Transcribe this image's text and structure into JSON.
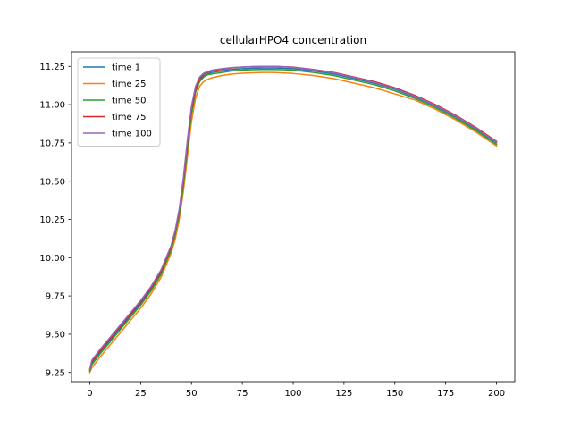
{
  "chart_data": {
    "type": "line",
    "title": "cellularHPO4 concentration",
    "xlabel": "",
    "ylabel": "",
    "xlim": [
      -9,
      209
    ],
    "ylim": [
      9.19,
      11.345
    ],
    "x_ticks": [
      0,
      25,
      50,
      75,
      100,
      125,
      150,
      175,
      200
    ],
    "y_ticks": [
      9.25,
      9.5,
      9.75,
      10.0,
      10.25,
      10.5,
      10.75,
      11.0,
      11.25
    ],
    "y_tick_labels": [
      "9.25",
      "9.50",
      "9.75",
      "10.00",
      "10.25",
      "10.50",
      "10.75",
      "11.00",
      "11.25"
    ],
    "grid": false,
    "legend_position": "upper left",
    "x": [
      0,
      1,
      5,
      10,
      15,
      20,
      25,
      30,
      35,
      40,
      42,
      44,
      46,
      48,
      50,
      52,
      54,
      56,
      58,
      60,
      65,
      70,
      75,
      80,
      85,
      90,
      95,
      100,
      110,
      120,
      130,
      140,
      150,
      160,
      170,
      180,
      190,
      200
    ],
    "series": [
      {
        "name": "time 1",
        "color": "#1f77b4",
        "values": [
          9.26,
          9.31,
          9.38,
          9.46,
          9.54,
          9.62,
          9.7,
          9.79,
          9.9,
          10.06,
          10.16,
          10.3,
          10.49,
          10.73,
          10.95,
          11.09,
          11.16,
          11.19,
          11.2,
          11.21,
          11.22,
          11.23,
          11.235,
          11.238,
          11.239,
          11.24,
          11.238,
          11.235,
          11.22,
          11.2,
          11.17,
          11.14,
          11.1,
          11.05,
          10.99,
          10.92,
          10.84,
          10.75
        ]
      },
      {
        "name": "time 25",
        "color": "#ff7f0e",
        "values": [
          9.25,
          9.28,
          9.35,
          9.43,
          9.51,
          9.59,
          9.67,
          9.76,
          9.87,
          10.03,
          10.12,
          10.25,
          10.43,
          10.66,
          10.89,
          11.04,
          11.12,
          11.15,
          11.165,
          11.175,
          11.19,
          11.2,
          11.205,
          11.208,
          11.21,
          11.21,
          11.207,
          11.203,
          11.19,
          11.17,
          11.14,
          11.11,
          11.07,
          11.03,
          10.97,
          10.9,
          10.82,
          10.73
        ]
      },
      {
        "name": "time 50",
        "color": "#2ca02c",
        "values": [
          9.26,
          9.3,
          9.37,
          9.45,
          9.53,
          9.61,
          9.69,
          9.78,
          9.89,
          10.05,
          10.15,
          10.28,
          10.47,
          10.71,
          10.94,
          11.08,
          11.15,
          11.18,
          11.195,
          11.2,
          11.21,
          11.22,
          11.225,
          11.228,
          11.23,
          11.23,
          11.228,
          11.225,
          11.21,
          11.19,
          11.16,
          11.13,
          11.09,
          11.04,
          10.98,
          10.91,
          10.83,
          10.74
        ]
      },
      {
        "name": "time 75",
        "color": "#d62728",
        "values": [
          9.27,
          9.32,
          9.39,
          9.47,
          9.55,
          9.63,
          9.71,
          9.8,
          9.91,
          10.07,
          10.17,
          10.31,
          10.5,
          10.75,
          10.97,
          11.1,
          11.17,
          11.2,
          11.21,
          11.22,
          11.23,
          11.24,
          11.245,
          11.248,
          11.249,
          11.25,
          11.248,
          11.245,
          11.23,
          11.21,
          11.18,
          11.15,
          11.11,
          11.06,
          11.0,
          10.93,
          10.85,
          10.76
        ]
      },
      {
        "name": "time 100",
        "color": "#9467bd",
        "values": [
          9.27,
          9.33,
          9.4,
          9.48,
          9.56,
          9.64,
          9.72,
          9.81,
          9.92,
          10.08,
          10.18,
          10.32,
          10.52,
          10.77,
          10.99,
          11.12,
          11.18,
          11.205,
          11.215,
          11.225,
          11.235,
          11.242,
          11.246,
          11.249,
          11.25,
          11.25,
          11.247,
          11.243,
          11.228,
          11.207,
          11.177,
          11.145,
          11.105,
          11.055,
          10.995,
          10.925,
          10.845,
          10.755
        ]
      }
    ]
  }
}
